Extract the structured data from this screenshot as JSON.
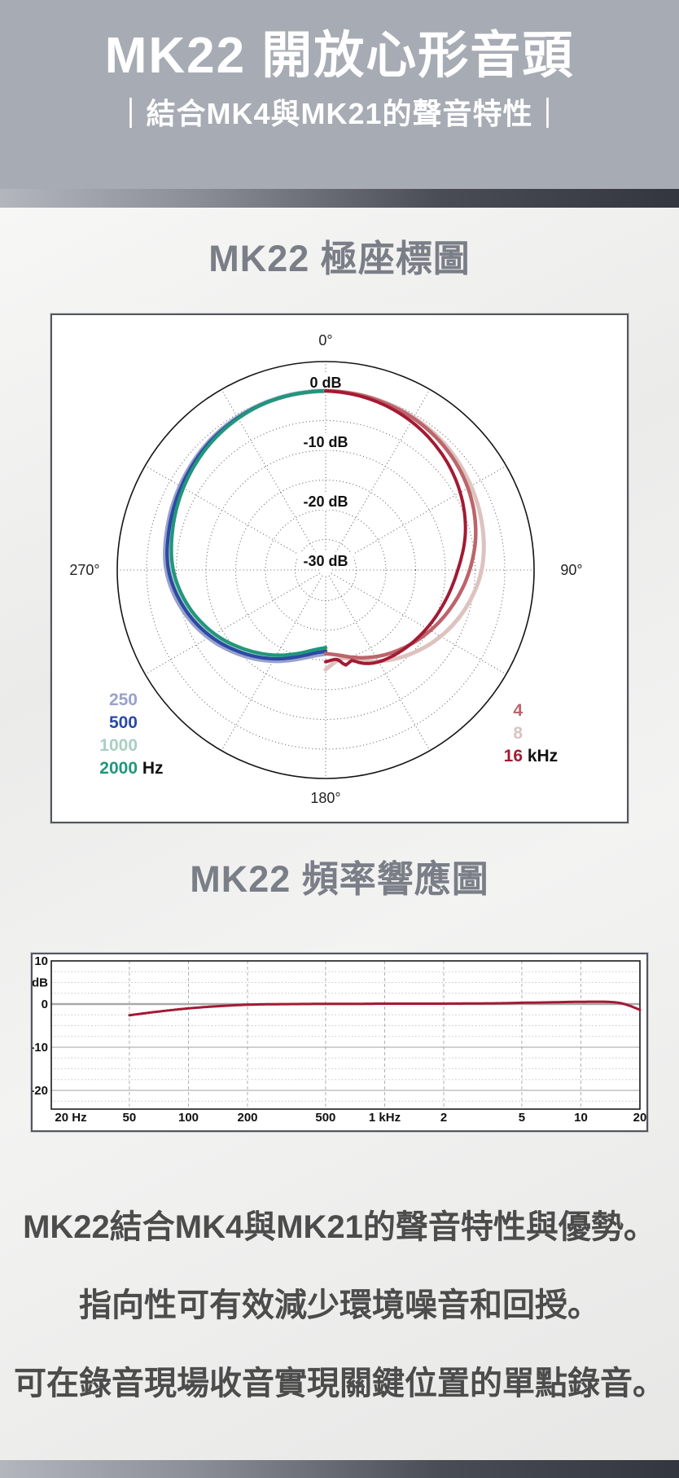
{
  "header": {
    "title": "MK22 開放心形音頭",
    "subtitle": "｜結合MK4與MK21的聲音特性｜"
  },
  "paragraphs": [
    "MK22結合MK4與MK21的聲音特性與優勢。",
    "指向性可有效減少環境噪音和回授。",
    "可在錄音現場收音實現關鍵位置的單點錄音。"
  ],
  "colors": {
    "header_bg": "#a7abb4",
    "band_light": "#b3b6bd",
    "band_dark": "#34363f",
    "section_title_gray": "#7a7e87",
    "body_text_gray": "#4c4c4c",
    "accent_crimson": "#a31a33"
  },
  "polar_legend": {
    "low": [
      {
        "label": "250",
        "color": "#99a1cd"
      },
      {
        "label": "500",
        "color": "#2b4aa5"
      },
      {
        "label": "1000",
        "color": "#a9cfc0"
      },
      {
        "label": "2000",
        "color": "#21967a",
        "unit": "Hz"
      }
    ],
    "high": [
      {
        "label": "4",
        "color": "#bd646b"
      },
      {
        "label": "8",
        "color": "#d9c2bf"
      },
      {
        "label": "16",
        "color": "#a31a33",
        "unit": "kHz"
      }
    ]
  },
  "chart_data": [
    {
      "type": "polar",
      "title": "MK22 極座標圖",
      "unit": "dB",
      "ring_step_db": 5,
      "radial_step_deg": 30,
      "outer_circle_db": 5,
      "ring_labels": [
        {
          "db": 0,
          "label": "0 dB"
        },
        {
          "db": -10,
          "label": "-10 dB"
        },
        {
          "db": -20,
          "label": "-20 dB"
        },
        {
          "db": -30,
          "label": "-30 dB"
        }
      ],
      "angle_labels": [
        {
          "deg": 0,
          "label": "0°"
        },
        {
          "deg": 90,
          "label": "90°"
        },
        {
          "deg": 180,
          "label": "180°"
        },
        {
          "deg": 270,
          "label": "270°"
        }
      ],
      "series": [
        {
          "name": "250 Hz",
          "side": "left",
          "color": "#99a1cd",
          "width": 5.5,
          "points": [
            [
              0,
              0
            ],
            [
              20,
              -0.2
            ],
            [
              40,
              -0.85
            ],
            [
              60,
              -1.85
            ],
            [
              75,
              -2.6
            ],
            [
              90,
              -3.35
            ],
            [
              105,
              -5.1
            ],
            [
              120,
              -7.4
            ],
            [
              135,
              -10.0
            ],
            [
              150,
              -12.5
            ],
            [
              162,
              -14.4
            ],
            [
              172,
              -15.6
            ],
            [
              180,
              -16.1
            ]
          ]
        },
        {
          "name": "1000 Hz",
          "side": "left",
          "color": "#a9cfc0",
          "width": 5,
          "points": [
            [
              0,
              0
            ],
            [
              20,
              -0.2
            ],
            [
              40,
              -1.05
            ],
            [
              60,
              -2.3
            ],
            [
              75,
              -3.25
            ],
            [
              90,
              -4.2
            ],
            [
              105,
              -6.0
            ],
            [
              120,
              -8.3
            ],
            [
              135,
              -10.9
            ],
            [
              150,
              -13.3
            ],
            [
              162,
              -15.1
            ],
            [
              172,
              -16.3
            ],
            [
              180,
              -16.8
            ]
          ]
        },
        {
          "name": "500 Hz",
          "side": "left",
          "color": "#2b4aa5",
          "width": 4.2,
          "points": [
            [
              0,
              0
            ],
            [
              20,
              -0.25
            ],
            [
              40,
              -1.0
            ],
            [
              60,
              -2.1
            ],
            [
              75,
              -2.9
            ],
            [
              90,
              -3.7
            ],
            [
              105,
              -5.5
            ],
            [
              120,
              -7.8
            ],
            [
              135,
              -10.4
            ],
            [
              150,
              -12.9
            ],
            [
              162,
              -14.8
            ],
            [
              172,
              -16.0
            ],
            [
              180,
              -16.5
            ]
          ]
        },
        {
          "name": "2000 Hz",
          "side": "left",
          "color": "#21967a",
          "width": 4.2,
          "points": [
            [
              0,
              0
            ],
            [
              20,
              -0.3
            ],
            [
              40,
              -1.2
            ],
            [
              60,
              -2.5
            ],
            [
              75,
              -3.5
            ],
            [
              90,
              -4.5
            ],
            [
              105,
              -6.3
            ],
            [
              120,
              -8.6
            ],
            [
              135,
              -11.2
            ],
            [
              150,
              -13.6
            ],
            [
              162,
              -15.4
            ],
            [
              172,
              -16.6
            ],
            [
              180,
              -17.1
            ]
          ]
        },
        {
          "name": "8 kHz",
          "side": "right",
          "color": "#ddc3bf",
          "width": 5,
          "points": [
            [
              0,
              0
            ],
            [
              15,
              -0.15
            ],
            [
              30,
              -0.5
            ],
            [
              45,
              -1.05
            ],
            [
              60,
              -1.9
            ],
            [
              75,
              -2.8
            ],
            [
              90,
              -3.9
            ],
            [
              105,
              -5.7
            ],
            [
              120,
              -7.8
            ],
            [
              135,
              -10.1
            ],
            [
              150,
              -12.4
            ],
            [
              160,
              -13.9
            ],
            [
              168,
              -15.0
            ],
            [
              174,
              -14.6
            ],
            [
              180,
              -13.4
            ]
          ]
        },
        {
          "name": "4 kHz",
          "side": "right",
          "color": "#bd646b",
          "width": 4.5,
          "points": [
            [
              0,
              0
            ],
            [
              15,
              -0.2
            ],
            [
              30,
              -0.65
            ],
            [
              45,
              -1.4
            ],
            [
              60,
              -2.5
            ],
            [
              75,
              -4.0
            ],
            [
              90,
              -5.9
            ],
            [
              105,
              -7.9
            ],
            [
              120,
              -9.8
            ],
            [
              135,
              -11.6
            ],
            [
              150,
              -13.3
            ],
            [
              163,
              -14.8
            ],
            [
              172,
              -15.7
            ],
            [
              180,
              -16.1
            ]
          ]
        },
        {
          "name": "16 kHz",
          "side": "right",
          "color": "#a31a33",
          "width": 4,
          "points": [
            [
              0,
              0
            ],
            [
              15,
              -0.45
            ],
            [
              30,
              -1.3
            ],
            [
              45,
              -2.5
            ],
            [
              60,
              -4.0
            ],
            [
              75,
              -5.8
            ],
            [
              90,
              -7.9
            ],
            [
              105,
              -9.4
            ],
            [
              120,
              -10.5
            ],
            [
              135,
              -11.4
            ],
            [
              150,
              -12.3
            ],
            [
              158,
              -13.2
            ],
            [
              164,
              -14.3
            ],
            [
              168,
              -13.8
            ],
            [
              173,
              -15.0
            ],
            [
              180,
              -14.7
            ]
          ]
        }
      ]
    },
    {
      "type": "line",
      "title": "MK22 頻率響應圖",
      "ylabel": "dB",
      "x_range_hz": [
        20,
        20000
      ],
      "y_range_db": [
        -24.3,
        10
      ],
      "grid": "on",
      "x_ticks": [
        {
          "hz": 20,
          "label": "20 Hz"
        },
        {
          "hz": 50,
          "label": "50"
        },
        {
          "hz": 100,
          "label": "100"
        },
        {
          "hz": 200,
          "label": "200"
        },
        {
          "hz": 500,
          "label": "500"
        },
        {
          "hz": 1000,
          "label": "1 kHz"
        },
        {
          "hz": 2000,
          "label": "2"
        },
        {
          "hz": 5000,
          "label": "5"
        },
        {
          "hz": 10000,
          "label": "10"
        },
        {
          "hz": 20000,
          "label": "20"
        }
      ],
      "y_ticks": [
        {
          "db": 10,
          "label": "10"
        },
        {
          "db": 5,
          "label": "dB"
        },
        {
          "db": 0,
          "label": "0"
        },
        {
          "db": -10,
          "label": "-10"
        },
        {
          "db": -20,
          "label": "-20"
        }
      ],
      "series": [
        {
          "name": "MK22 frequency response",
          "color": "#a31a33",
          "points": [
            [
              50,
              -2.6
            ],
            [
              63,
              -2.0
            ],
            [
              80,
              -1.45
            ],
            [
              100,
              -1.0
            ],
            [
              130,
              -0.6
            ],
            [
              160,
              -0.35
            ],
            [
              200,
              -0.15
            ],
            [
              260,
              -0.05
            ],
            [
              350,
              0
            ],
            [
              500,
              0.05
            ],
            [
              700,
              0.05
            ],
            [
              1000,
              0.1
            ],
            [
              1500,
              0.1
            ],
            [
              2000,
              0.1
            ],
            [
              3000,
              0.15
            ],
            [
              4000,
              0.2
            ],
            [
              5000,
              0.3
            ],
            [
              7000,
              0.4
            ],
            [
              9000,
              0.5
            ],
            [
              12000,
              0.55
            ],
            [
              14000,
              0.5
            ],
            [
              16000,
              0.2
            ],
            [
              18000,
              -0.5
            ],
            [
              20000,
              -1.35
            ]
          ]
        }
      ]
    }
  ]
}
